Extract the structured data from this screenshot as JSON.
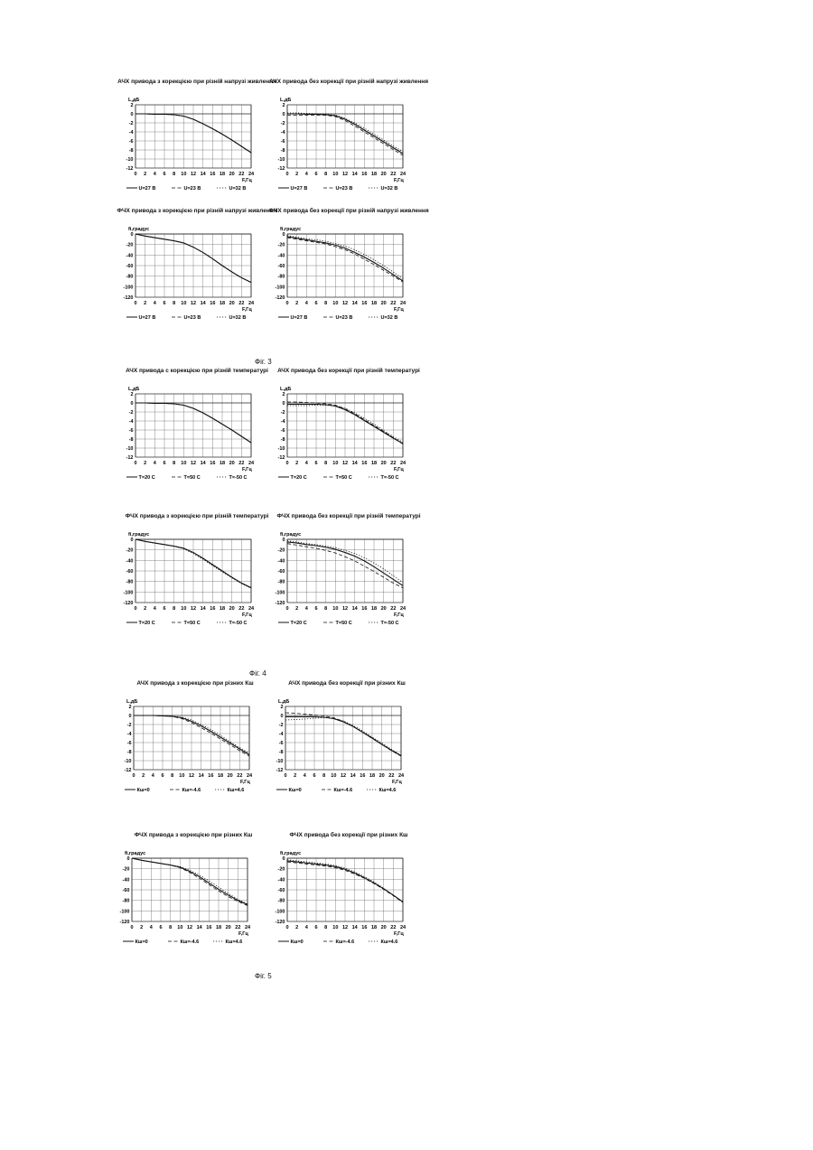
{
  "figures": {
    "fig3": "Фіг. 3",
    "fig4": "Фіг. 4",
    "fig5": "Фіг. 5"
  },
  "chart_data": [
    {
      "id": "c1",
      "type": "line",
      "title": "АЧХ привода з корекцією при різній напрузі живлення",
      "ylabel": "L,дБ",
      "xlabel": "F,Гц",
      "xlim": [
        0,
        24
      ],
      "ylim": [
        -12,
        2
      ],
      "ystep": 2,
      "xstep": 2,
      "x": [
        0,
        2,
        4,
        6,
        8,
        10,
        12,
        14,
        16,
        18,
        20,
        22,
        24
      ],
      "series": [
        {
          "name": "U=27 В",
          "style": "solid",
          "values": [
            0,
            0,
            -0.1,
            -0.1,
            -0.2,
            -0.5,
            -1.2,
            -2.2,
            -3.3,
            -4.5,
            -5.8,
            -7.2,
            -8.6
          ]
        },
        {
          "name": "U=23 В",
          "style": "dashed",
          "values": [
            0,
            0,
            -0.1,
            -0.1,
            -0.2,
            -0.5,
            -1.2,
            -2.2,
            -3.3,
            -4.5,
            -5.8,
            -7.2,
            -8.6
          ]
        },
        {
          "name": "U=32 В",
          "style": "dotted",
          "values": [
            0,
            0,
            -0.1,
            -0.1,
            -0.2,
            -0.5,
            -1.2,
            -2.2,
            -3.3,
            -4.5,
            -5.8,
            -7.2,
            -8.6
          ]
        }
      ]
    },
    {
      "id": "c2",
      "type": "line",
      "title": "АЧХ привода без корекції при різній напрузі живлення",
      "ylabel": "L,дБ",
      "xlabel": "F,Гц",
      "xlim": [
        0,
        24
      ],
      "ylim": [
        -12,
        2
      ],
      "ystep": 2,
      "xstep": 2,
      "x": [
        0,
        2,
        4,
        6,
        8,
        10,
        12,
        14,
        16,
        18,
        20,
        22,
        24
      ],
      "series": [
        {
          "name": "U=27 В",
          "style": "solid",
          "values": [
            0,
            0,
            -0.1,
            -0.1,
            -0.2,
            -0.4,
            -1.2,
            -2.3,
            -3.6,
            -4.9,
            -6.2,
            -7.5,
            -8.8
          ]
        },
        {
          "name": "U=23 В",
          "style": "dashed",
          "values": [
            -0.3,
            -0.3,
            -0.3,
            -0.3,
            -0.3,
            -0.6,
            -1.5,
            -2.7,
            -4.0,
            -5.3,
            -6.6,
            -7.9,
            -9.2
          ]
        },
        {
          "name": "U=32 В",
          "style": "dotted",
          "values": [
            0.2,
            0.2,
            0.1,
            0,
            -0.1,
            -0.3,
            -1.0,
            -2.0,
            -3.2,
            -4.5,
            -5.8,
            -7.1,
            -8.4
          ]
        }
      ]
    },
    {
      "id": "c3",
      "type": "line",
      "title": "ФЧХ привода з корекцією при різній напрузі живлення",
      "ylabel": "fi,градус",
      "xlabel": "F,Гц",
      "xlim": [
        0,
        24
      ],
      "ylim": [
        -120,
        0
      ],
      "ystep": 20,
      "xstep": 2,
      "x": [
        0,
        2,
        4,
        6,
        8,
        10,
        12,
        14,
        16,
        18,
        20,
        22,
        24
      ],
      "series": [
        {
          "name": "U=27 В",
          "style": "solid",
          "values": [
            0,
            -4,
            -7,
            -10,
            -13,
            -17,
            -25,
            -35,
            -47,
            -60,
            -72,
            -83,
            -92
          ]
        },
        {
          "name": "U=23 В",
          "style": "dashed",
          "values": [
            0,
            -4,
            -7,
            -10,
            -13,
            -17,
            -25,
            -35,
            -47,
            -60,
            -72,
            -83,
            -92
          ]
        },
        {
          "name": "U=32 В",
          "style": "dotted",
          "values": [
            0,
            -4,
            -7,
            -10,
            -13,
            -17,
            -25,
            -35,
            -47,
            -60,
            -72,
            -83,
            -92
          ]
        }
      ]
    },
    {
      "id": "c4",
      "type": "line",
      "title": "ФЧХ привода без корекції при різній напрузі живлення",
      "ylabel": "fi,градус",
      "xlabel": "F,Гц",
      "xlim": [
        0,
        24
      ],
      "ylim": [
        -120,
        0
      ],
      "ystep": 20,
      "xstep": 2,
      "x": [
        0,
        2,
        4,
        6,
        8,
        10,
        12,
        14,
        16,
        18,
        20,
        22,
        24
      ],
      "series": [
        {
          "name": "U=27 В",
          "style": "solid",
          "values": [
            -5,
            -8,
            -11,
            -14,
            -17,
            -21,
            -27,
            -35,
            -44,
            -54,
            -65,
            -77,
            -89
          ]
        },
        {
          "name": "U=23 В",
          "style": "dashed",
          "values": [
            -7,
            -10,
            -13,
            -16,
            -19,
            -24,
            -30,
            -38,
            -48,
            -58,
            -69,
            -80,
            -91
          ]
        },
        {
          "name": "U=32 В",
          "style": "dotted",
          "values": [
            -3,
            -6,
            -9,
            -11,
            -14,
            -18,
            -23,
            -30,
            -39,
            -49,
            -60,
            -72,
            -85
          ]
        }
      ]
    },
    {
      "id": "c5",
      "type": "line",
      "title": "АЧХ привода с корекцією при різній температурі",
      "ylabel": "L,дБ",
      "xlabel": "F,Гц",
      "xlim": [
        0,
        24
      ],
      "ylim": [
        -12,
        2
      ],
      "ystep": 2,
      "xstep": 2,
      "x": [
        0,
        2,
        4,
        6,
        8,
        10,
        12,
        14,
        16,
        18,
        20,
        22,
        24
      ],
      "series": [
        {
          "name": "T=20 C",
          "style": "solid",
          "values": [
            0,
            0,
            -0.1,
            -0.1,
            -0.2,
            -0.5,
            -1.2,
            -2.2,
            -3.4,
            -4.7,
            -6.0,
            -7.4,
            -8.8
          ]
        },
        {
          "name": "T=50 C",
          "style": "dashed",
          "values": [
            0,
            0,
            -0.1,
            -0.1,
            -0.2,
            -0.5,
            -1.2,
            -2.2,
            -3.4,
            -4.7,
            -6.0,
            -7.4,
            -8.8
          ]
        },
        {
          "name": "T=-50 C",
          "style": "dotted",
          "values": [
            0,
            0,
            -0.1,
            -0.1,
            -0.2,
            -0.5,
            -1.2,
            -2.2,
            -3.4,
            -4.7,
            -6.0,
            -7.4,
            -8.8
          ]
        }
      ]
    },
    {
      "id": "c6",
      "type": "line",
      "title": "АЧХ привода без корекції при різній температурі",
      "ylabel": "L,дБ",
      "xlabel": "F,Гц",
      "xlim": [
        0,
        24
      ],
      "ylim": [
        -12,
        2
      ],
      "ystep": 2,
      "xstep": 2,
      "x": [
        0,
        2,
        4,
        6,
        8,
        10,
        12,
        14,
        16,
        18,
        20,
        22,
        24
      ],
      "series": [
        {
          "name": "T=20 C",
          "style": "solid",
          "values": [
            -0.3,
            -0.3,
            -0.3,
            -0.3,
            -0.4,
            -0.7,
            -1.5,
            -2.6,
            -3.9,
            -5.2,
            -6.5,
            -7.8,
            -9.0
          ]
        },
        {
          "name": "T=50 C",
          "style": "dashed",
          "values": [
            0.2,
            0.2,
            0.1,
            0,
            -0.2,
            -0.5,
            -1.3,
            -2.4,
            -3.7,
            -5.0,
            -6.3,
            -7.7,
            -9.1
          ]
        },
        {
          "name": "T=-50 C",
          "style": "dotted",
          "values": [
            -0.6,
            -0.6,
            -0.6,
            -0.5,
            -0.5,
            -0.6,
            -1.2,
            -2.2,
            -3.4,
            -4.7,
            -6.1,
            -7.5,
            -8.7
          ]
        }
      ]
    },
    {
      "id": "c7",
      "type": "line",
      "title": "ФЧХ привода з корекцією при різній температурі",
      "ylabel": "fi,градус",
      "xlabel": "F,Гц",
      "xlim": [
        0,
        24
      ],
      "ylim": [
        -120,
        0
      ],
      "ystep": 20,
      "xstep": 2,
      "x": [
        0,
        2,
        4,
        6,
        8,
        10,
        12,
        14,
        16,
        18,
        20,
        22,
        24
      ],
      "series": [
        {
          "name": "T=20 C",
          "style": "solid",
          "values": [
            0,
            -4,
            -7,
            -10,
            -13,
            -17,
            -25,
            -36,
            -48,
            -60,
            -72,
            -83,
            -92
          ]
        },
        {
          "name": "T=50 C",
          "style": "dashed",
          "values": [
            0,
            -4,
            -7,
            -10,
            -13,
            -17,
            -25,
            -36,
            -48,
            -60,
            -72,
            -83,
            -92
          ]
        },
        {
          "name": "T=-50 C",
          "style": "dotted",
          "values": [
            0,
            -4,
            -7,
            -10,
            -13,
            -18,
            -27,
            -38,
            -50,
            -62,
            -73,
            -84,
            -93
          ]
        }
      ]
    },
    {
      "id": "c8",
      "type": "line",
      "title": "ФЧХ привода без корекції при різній температурі",
      "ylabel": "fi,градус",
      "xlabel": "F,Гц",
      "xlim": [
        0,
        24
      ],
      "ylim": [
        -120,
        0
      ],
      "ystep": 20,
      "xstep": 2,
      "x": [
        0,
        2,
        4,
        6,
        8,
        10,
        12,
        14,
        16,
        18,
        20,
        22,
        24
      ],
      "series": [
        {
          "name": "T=20 C",
          "style": "solid",
          "values": [
            -5,
            -7,
            -10,
            -12,
            -15,
            -19,
            -25,
            -32,
            -41,
            -52,
            -64,
            -76,
            -88
          ]
        },
        {
          "name": "T=50 C",
          "style": "dashed",
          "values": [
            -8,
            -11,
            -14,
            -17,
            -21,
            -26,
            -33,
            -41,
            -51,
            -61,
            -72,
            -83,
            -92
          ]
        },
        {
          "name": "T=-50 C",
          "style": "dotted",
          "values": [
            -3,
            -5,
            -8,
            -10,
            -13,
            -16,
            -21,
            -27,
            -35,
            -45,
            -56,
            -69,
            -82
          ]
        }
      ]
    },
    {
      "id": "c9",
      "type": "line",
      "title": "АЧХ привода з корекцією при різних Кш",
      "ylabel": "L,дБ",
      "xlabel": "F,Гц",
      "xlim": [
        0,
        24
      ],
      "ylim": [
        -12,
        2
      ],
      "ystep": 2,
      "xstep": 2,
      "x": [
        0,
        2,
        4,
        6,
        8,
        10,
        12,
        14,
        16,
        18,
        20,
        22,
        24
      ],
      "series": [
        {
          "name": "Кш=0",
          "style": "solid",
          "values": [
            0,
            0,
            0,
            -0.1,
            -0.2,
            -0.5,
            -1.3,
            -2.3,
            -3.5,
            -4.8,
            -6.1,
            -7.4,
            -8.7
          ]
        },
        {
          "name": "Кш=-4.6",
          "style": "dashed",
          "values": [
            0,
            0,
            0,
            -0.1,
            -0.2,
            -0.7,
            -1.6,
            -2.7,
            -3.9,
            -5.2,
            -6.5,
            -7.8,
            -9.0
          ]
        },
        {
          "name": "Кш=4.6",
          "style": "dotted",
          "values": [
            0,
            0,
            0,
            -0.1,
            -0.2,
            -0.4,
            -1.0,
            -2.0,
            -3.1,
            -4.4,
            -5.8,
            -7.1,
            -8.4
          ]
        }
      ]
    },
    {
      "id": "c10",
      "type": "line",
      "title": "АЧХ привода без корекції при різних Кш",
      "ylabel": "L,дБ",
      "xlabel": "F,Гц",
      "xlim": [
        0,
        24
      ],
      "ylim": [
        -12,
        2
      ],
      "ystep": 2,
      "xstep": 2,
      "x": [
        0,
        2,
        4,
        6,
        8,
        10,
        12,
        14,
        16,
        18,
        20,
        22,
        24
      ],
      "series": [
        {
          "name": "Кш=0",
          "style": "solid",
          "values": [
            -0.3,
            -0.3,
            -0.3,
            -0.3,
            -0.4,
            -0.7,
            -1.4,
            -2.4,
            -3.7,
            -5.0,
            -6.4,
            -7.7,
            -8.9
          ]
        },
        {
          "name": "Кш=-4.6",
          "style": "dashed",
          "values": [
            0.6,
            0.5,
            0.3,
            0.1,
            -0.1,
            -0.5,
            -1.3,
            -2.4,
            -3.7,
            -5.1,
            -6.4,
            -7.8,
            -9.0
          ]
        },
        {
          "name": "Кш=4.6",
          "style": "dotted",
          "values": [
            -1.0,
            -0.9,
            -0.8,
            -0.6,
            -0.5,
            -0.6,
            -1.2,
            -2.2,
            -3.4,
            -4.8,
            -6.1,
            -7.5,
            -8.8
          ]
        }
      ]
    },
    {
      "id": "c11",
      "type": "line",
      "title": "ФЧХ привода з корекцією при різних Кш",
      "ylabel": "fi,градус",
      "xlabel": "F,Гц",
      "xlim": [
        0,
        24
      ],
      "ylim": [
        -120,
        0
      ],
      "ystep": 20,
      "xstep": 2,
      "x": [
        0,
        2,
        4,
        6,
        8,
        10,
        12,
        14,
        16,
        18,
        20,
        22,
        24
      ],
      "series": [
        {
          "name": "Кш=0",
          "style": "solid",
          "values": [
            0,
            -4,
            -7,
            -10,
            -13,
            -17,
            -25,
            -35,
            -47,
            -59,
            -70,
            -80,
            -88
          ]
        },
        {
          "name": "Кш=-4.6",
          "style": "dashed",
          "values": [
            0,
            -4,
            -7,
            -10,
            -13,
            -18,
            -27,
            -38,
            -50,
            -62,
            -73,
            -82,
            -90
          ]
        },
        {
          "name": "Кш=4.6",
          "style": "dotted",
          "values": [
            0,
            -4,
            -7,
            -10,
            -13,
            -16,
            -23,
            -32,
            -43,
            -55,
            -67,
            -78,
            -87
          ]
        }
      ]
    },
    {
      "id": "c12",
      "type": "line",
      "title": "ФЧХ привода без корекції при різних Кш",
      "ylabel": "fi,градус",
      "xlabel": "F,Гц",
      "xlim": [
        0,
        24
      ],
      "ylim": [
        -120,
        0
      ],
      "ystep": 20,
      "xstep": 2,
      "x": [
        0,
        2,
        4,
        6,
        8,
        10,
        12,
        14,
        16,
        18,
        20,
        22,
        24
      ],
      "series": [
        {
          "name": "Кш=0",
          "style": "solid",
          "values": [
            -5,
            -7,
            -9,
            -11,
            -13,
            -16,
            -21,
            -28,
            -37,
            -47,
            -58,
            -70,
            -83
          ]
        },
        {
          "name": "Кш=-4.6",
          "style": "dashed",
          "values": [
            -7,
            -9,
            -11,
            -13,
            -15,
            -18,
            -23,
            -30,
            -38,
            -48,
            -59,
            -71,
            -84
          ]
        },
        {
          "name": "Кш=4.6",
          "style": "dotted",
          "values": [
            -3,
            -5,
            -7,
            -9,
            -11,
            -14,
            -19,
            -26,
            -35,
            -45,
            -57,
            -70,
            -83
          ]
        }
      ]
    }
  ]
}
